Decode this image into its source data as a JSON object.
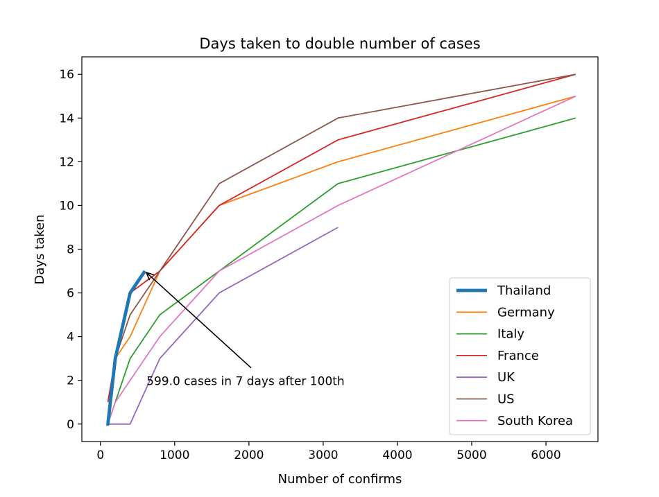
{
  "chart_data": {
    "type": "line",
    "title": "Days taken to double number of cases",
    "xlabel": "Number of confirms",
    "ylabel": "Days taken",
    "xlim": [
      -250,
      6700
    ],
    "ylim": [
      -0.8,
      16.8
    ],
    "xticks": [
      0,
      1000,
      2000,
      3000,
      4000,
      5000,
      6000
    ],
    "yticks": [
      0,
      2,
      4,
      6,
      8,
      10,
      12,
      14,
      16
    ],
    "grid": false,
    "legend_position": "bottom-right",
    "series": [
      {
        "name": "Thailand",
        "color": "#1f77b4",
        "emphasis": true,
        "x": [
          80,
          100,
          200,
          400,
          599
        ],
        "y": [
          0,
          0,
          3,
          6,
          7
        ]
      },
      {
        "name": "Germany",
        "color": "#ff7f0e",
        "x": [
          100,
          200,
          400,
          800,
          1600,
          3200,
          6400
        ],
        "y": [
          0,
          3,
          4,
          7,
          10,
          12,
          15
        ]
      },
      {
        "name": "Italy",
        "color": "#2ca02c",
        "x": [
          100,
          200,
          400,
          800,
          1600,
          3200,
          6400
        ],
        "y": [
          0,
          1,
          3,
          5,
          7,
          11,
          14
        ]
      },
      {
        "name": "France",
        "color": "#d62728",
        "x": [
          100,
          200,
          400,
          800,
          1600,
          3200,
          6400
        ],
        "y": [
          1,
          3,
          6,
          7,
          10,
          13,
          16
        ]
      },
      {
        "name": "UK",
        "color": "#9467bd",
        "x": [
          100,
          200,
          400,
          800,
          1600,
          3200
        ],
        "y": [
          0,
          0,
          0,
          3,
          6,
          9
        ]
      },
      {
        "name": "US",
        "color": "#8c564b",
        "x": [
          100,
          200,
          400,
          800,
          1600,
          3200,
          6400
        ],
        "y": [
          0,
          3,
          5,
          7,
          11,
          14,
          16
        ]
      },
      {
        "name": "South Korea",
        "color": "#e377c2",
        "x": [
          100,
          200,
          400,
          800,
          1600,
          3200,
          6400
        ],
        "y": [
          0,
          1,
          2,
          4,
          7,
          10,
          15
        ]
      }
    ],
    "annotation": {
      "text": "599.0 cases in 7 days after 100th",
      "point": {
        "x": 599,
        "y": 7
      },
      "text_position": {
        "x": 620,
        "y": 2
      }
    }
  }
}
